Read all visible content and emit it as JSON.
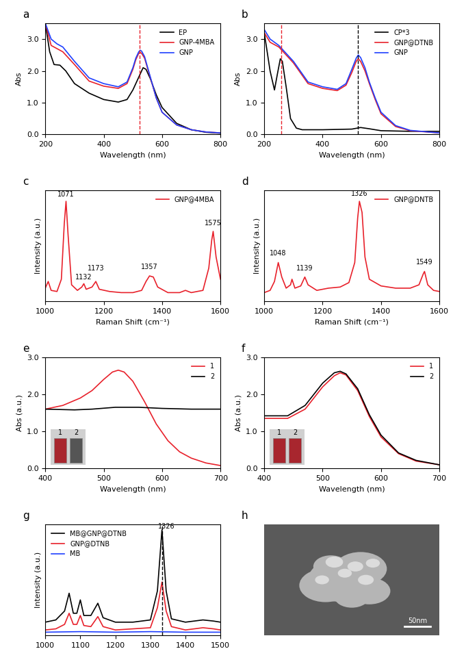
{
  "chart_data": [
    {
      "type": "line",
      "title": "a",
      "x_label": "Wavelength (nm)",
      "y_label": "Abs",
      "xlim": [
        200,
        800
      ],
      "ylim": [
        0,
        3.5
      ],
      "xticks": [
        200,
        400,
        600,
        800
      ],
      "yticks": [
        {
          "value": 0,
          "label": "0.0"
        },
        {
          "value": 1,
          "label": "1.0"
        },
        {
          "value": 2,
          "label": "2.0"
        },
        {
          "value": 3,
          "label": "3.0"
        }
      ],
      "legend": "upper right",
      "vlines": [
        {
          "x": 524,
          "color": "#e8212b"
        }
      ],
      "series": [
        {
          "name": "EP",
          "color": "#000000",
          "x": [
            200,
            215,
            230,
            250,
            270,
            300,
            350,
            400,
            450,
            480,
            500,
            520,
            535,
            545,
            560,
            580,
            600,
            650,
            700,
            750,
            800
          ],
          "values": [
            3.5,
            2.6,
            2.2,
            2.18,
            2.0,
            1.6,
            1.3,
            1.1,
            1.02,
            1.1,
            1.4,
            1.8,
            2.1,
            2.05,
            1.75,
            1.25,
            0.85,
            0.35,
            0.15,
            0.07,
            0.04
          ]
        },
        {
          "name": "GNP-4MBA",
          "color": "#e8212b",
          "x": [
            200,
            220,
            240,
            260,
            300,
            350,
            400,
            450,
            480,
            500,
            510,
            520,
            525,
            530,
            540,
            560,
            580,
            600,
            650,
            700,
            750,
            800
          ],
          "values": [
            3.5,
            2.8,
            2.7,
            2.6,
            2.2,
            1.68,
            1.52,
            1.45,
            1.6,
            2.05,
            2.35,
            2.55,
            2.58,
            2.55,
            2.4,
            1.78,
            1.15,
            0.7,
            0.3,
            0.15,
            0.08,
            0.05
          ]
        },
        {
          "name": "GNP",
          "color": "#1f3fff",
          "x": [
            200,
            220,
            240,
            260,
            300,
            350,
            400,
            450,
            480,
            500,
            510,
            520,
            525,
            530,
            540,
            560,
            580,
            600,
            650,
            700,
            750,
            800
          ],
          "values": [
            3.5,
            3.0,
            2.85,
            2.75,
            2.3,
            1.78,
            1.6,
            1.5,
            1.65,
            2.1,
            2.4,
            2.6,
            2.65,
            2.62,
            2.45,
            1.8,
            1.15,
            0.7,
            0.3,
            0.15,
            0.08,
            0.05
          ]
        }
      ]
    },
    {
      "type": "line",
      "title": "b",
      "x_label": "Wavelength (nm)",
      "y_label": "Abs",
      "xlim": [
        200,
        800
      ],
      "ylim": [
        0,
        3.5
      ],
      "xticks": [
        200,
        400,
        600,
        800
      ],
      "yticks": [
        {
          "value": 0,
          "label": "0.0"
        },
        {
          "value": 1,
          "label": "1.0"
        },
        {
          "value": 2,
          "label": "2.0"
        },
        {
          "value": 3,
          "label": "3.0"
        }
      ],
      "legend": "upper right",
      "vlines": [
        {
          "x": 258,
          "color": "#e8212b"
        },
        {
          "x": 521,
          "color": "#000000"
        }
      ],
      "series": [
        {
          "name": "CP*3",
          "color": "#000000",
          "x": [
            200,
            220,
            235,
            245,
            255,
            262,
            275,
            290,
            310,
            330,
            400,
            500,
            530,
            560,
            600,
            700,
            800
          ],
          "values": [
            3.2,
            2.0,
            1.4,
            1.9,
            2.38,
            2.3,
            1.5,
            0.5,
            0.2,
            0.15,
            0.15,
            0.17,
            0.22,
            0.18,
            0.12,
            0.1,
            0.1
          ]
        },
        {
          "name": "GNP@DTNB",
          "color": "#e8212b",
          "x": [
            200,
            220,
            250,
            300,
            350,
            400,
            450,
            480,
            500,
            515,
            522,
            530,
            545,
            560,
            580,
            600,
            650,
            700,
            800
          ],
          "values": [
            3.2,
            2.9,
            2.75,
            2.25,
            1.6,
            1.45,
            1.38,
            1.55,
            1.95,
            2.3,
            2.38,
            2.3,
            2.0,
            1.6,
            1.1,
            0.65,
            0.25,
            0.12,
            0.05
          ]
        },
        {
          "name": "GNP",
          "color": "#1f3fff",
          "x": [
            200,
            220,
            250,
            300,
            350,
            400,
            450,
            480,
            500,
            515,
            522,
            530,
            545,
            560,
            580,
            600,
            650,
            700,
            800
          ],
          "values": [
            3.3,
            3.0,
            2.8,
            2.3,
            1.65,
            1.5,
            1.42,
            1.6,
            2.05,
            2.4,
            2.5,
            2.42,
            2.1,
            1.65,
            1.15,
            0.7,
            0.28,
            0.13,
            0.05
          ]
        }
      ]
    },
    {
      "type": "line",
      "title": "c",
      "x_label": "Raman Shift (cm⁻¹)",
      "y_label": "Intensity (a.u.)",
      "xlim": [
        1000,
        1600
      ],
      "ylim": [
        0,
        100
      ],
      "xticks": [
        1000,
        1200,
        1400,
        1600
      ],
      "tick_labels": "x",
      "legend": "upper right",
      "annotations": [
        {
          "x": 1071,
          "y": 93,
          "text": "1071"
        },
        {
          "x": 1132,
          "y": 19,
          "text": "1132"
        },
        {
          "x": 1173,
          "y": 27,
          "text": "1173"
        },
        {
          "x": 1357,
          "y": 28,
          "text": "1357"
        },
        {
          "x": 1575,
          "y": 67,
          "text": "1575"
        }
      ],
      "series": [
        {
          "name": "GNP@4MBA",
          "color": "#e8212b",
          "x": [
            1000,
            1010,
            1020,
            1040,
            1055,
            1065,
            1071,
            1078,
            1090,
            1110,
            1125,
            1132,
            1140,
            1160,
            1173,
            1185,
            1220,
            1260,
            1300,
            1330,
            1345,
            1357,
            1370,
            1385,
            1420,
            1460,
            1480,
            1500,
            1540,
            1560,
            1570,
            1575,
            1585,
            1600
          ],
          "values": [
            12,
            18,
            10,
            9,
            20,
            70,
            90,
            60,
            15,
            10,
            13,
            16,
            11,
            13,
            18,
            11,
            9,
            8,
            8,
            10,
            18,
            23,
            22,
            13,
            8,
            8,
            10,
            8,
            10,
            30,
            55,
            63,
            40,
            20
          ]
        }
      ]
    },
    {
      "type": "line",
      "title": "d",
      "x_label": "Raman Shift (cm⁻¹)",
      "y_label": "Intensity (a.u.)",
      "xlim": [
        1000,
        1600
      ],
      "ylim": [
        0,
        100
      ],
      "xticks": [
        1000,
        1200,
        1400,
        1600
      ],
      "tick_labels": "x",
      "legend": "upper right",
      "annotations": [
        {
          "x": 1048,
          "y": 40,
          "text": "1048"
        },
        {
          "x": 1139,
          "y": 27,
          "text": "1139"
        },
        {
          "x": 1326,
          "y": 94,
          "text": "1326"
        },
        {
          "x": 1549,
          "y": 32,
          "text": "1549"
        }
      ],
      "series": [
        {
          "name": "GNP@DNTB",
          "color": "#e8212b",
          "x": [
            1000,
            1020,
            1035,
            1048,
            1060,
            1075,
            1090,
            1095,
            1105,
            1125,
            1139,
            1150,
            1180,
            1220,
            1260,
            1290,
            1310,
            1320,
            1326,
            1335,
            1345,
            1360,
            1400,
            1450,
            1500,
            1530,
            1545,
            1549,
            1560,
            1580,
            1600
          ],
          "values": [
            8,
            10,
            18,
            35,
            22,
            12,
            15,
            20,
            12,
            14,
            22,
            15,
            10,
            12,
            13,
            17,
            35,
            75,
            90,
            80,
            40,
            20,
            14,
            12,
            12,
            15,
            25,
            27,
            15,
            10,
            9
          ]
        }
      ]
    },
    {
      "type": "line",
      "title": "e",
      "x_label": "Wavelength (nm)",
      "y_label": "Abs (a.u.)",
      "xlim": [
        400,
        700
      ],
      "ylim": [
        0,
        3.0
      ],
      "xticks": [
        400,
        500,
        600,
        700
      ],
      "yticks": [
        {
          "value": 0,
          "label": "0.0"
        },
        {
          "value": 1,
          "label": "1.0"
        },
        {
          "value": 2,
          "label": "2.0"
        },
        {
          "value": 3,
          "label": "3.0"
        }
      ],
      "legend": "upper right",
      "series": [
        {
          "name": "1",
          "color": "#e8212b",
          "x": [
            400,
            430,
            460,
            480,
            500,
            515,
            525,
            535,
            550,
            570,
            590,
            610,
            630,
            650,
            675,
            700
          ],
          "values": [
            1.6,
            1.7,
            1.9,
            2.1,
            2.4,
            2.6,
            2.65,
            2.6,
            2.35,
            1.8,
            1.2,
            0.75,
            0.45,
            0.28,
            0.15,
            0.08
          ]
        },
        {
          "name": "2",
          "color": "#000000",
          "x": [
            400,
            450,
            480,
            520,
            560,
            600,
            650,
            700
          ],
          "values": [
            1.6,
            1.58,
            1.6,
            1.65,
            1.65,
            1.62,
            1.6,
            1.6
          ]
        }
      ]
    },
    {
      "type": "line",
      "title": "f",
      "x_label": "Wavelength (nm)",
      "y_label": "Abs (a.u.)",
      "xlim": [
        400,
        700
      ],
      "ylim": [
        0,
        3.0
      ],
      "xticks": [
        400,
        500,
        600,
        700
      ],
      "yticks": [
        {
          "value": 0,
          "label": "0.0"
        },
        {
          "value": 1,
          "label": "1.0"
        },
        {
          "value": 2,
          "label": "2.0"
        },
        {
          "value": 3,
          "label": "3.0"
        }
      ],
      "legend": "upper right",
      "series": [
        {
          "name": "1",
          "color": "#e8212b",
          "x": [
            400,
            440,
            470,
            500,
            520,
            530,
            540,
            560,
            580,
            600,
            630,
            660,
            700
          ],
          "values": [
            1.35,
            1.35,
            1.6,
            2.2,
            2.5,
            2.58,
            2.52,
            2.1,
            1.4,
            0.85,
            0.4,
            0.2,
            0.1
          ]
        },
        {
          "name": "2",
          "color": "#000000",
          "x": [
            400,
            440,
            470,
            500,
            520,
            530,
            540,
            560,
            580,
            600,
            630,
            660,
            700
          ],
          "values": [
            1.42,
            1.42,
            1.7,
            2.3,
            2.58,
            2.62,
            2.55,
            2.15,
            1.45,
            0.9,
            0.42,
            0.22,
            0.1
          ]
        }
      ]
    },
    {
      "type": "line",
      "title": "g",
      "y_label": "Intensity (a.u.)",
      "xlim": [
        1000,
        1500
      ],
      "ylim": [
        0,
        100
      ],
      "xticks": [
        1000,
        1100,
        1200,
        1300,
        1400,
        1500
      ],
      "tick_labels": "x",
      "legend": "upper left",
      "vlines": [
        {
          "x": 1333,
          "color": "#000000"
        }
      ],
      "annotations": [
        {
          "x": 1345,
          "y": 95,
          "text": "1326"
        }
      ],
      "series": [
        {
          "name": "MB@GNP@DTNB",
          "color": "#000000",
          "x": [
            1000,
            1030,
            1055,
            1068,
            1080,
            1090,
            1100,
            1110,
            1130,
            1150,
            1165,
            1200,
            1250,
            1300,
            1320,
            1333,
            1345,
            1360,
            1400,
            1450,
            1480,
            1500
          ],
          "values": [
            12,
            14,
            22,
            38,
            20,
            20,
            32,
            18,
            18,
            29,
            16,
            12,
            12,
            14,
            40,
            95,
            40,
            15,
            12,
            14,
            13,
            12
          ]
        },
        {
          "name": "GNP@DTNB",
          "color": "#e8212b",
          "x": [
            1000,
            1030,
            1055,
            1068,
            1080,
            1090,
            1100,
            1110,
            1130,
            1150,
            1165,
            1200,
            1250,
            1300,
            1320,
            1333,
            1345,
            1360,
            1400,
            1450,
            1480,
            1500
          ],
          "values": [
            5,
            6,
            10,
            20,
            10,
            10,
            18,
            9,
            8,
            17,
            8,
            5,
            6,
            7,
            25,
            48,
            22,
            8,
            5,
            7,
            6,
            5
          ]
        },
        {
          "name": "MB",
          "color": "#1f3fff",
          "x": [
            1000,
            1100,
            1200,
            1300,
            1400,
            1500
          ],
          "values": [
            3,
            3.5,
            3,
            3.5,
            3,
            3
          ]
        }
      ]
    }
  ],
  "image": {
    "title": "h",
    "scale_bar": "50nm"
  }
}
